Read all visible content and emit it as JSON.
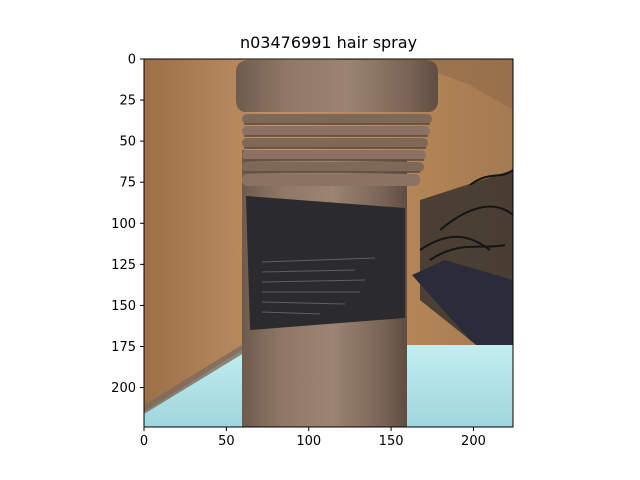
{
  "title": "n03476991 hair spray",
  "image": {
    "subject": "hair spray can",
    "colors": {
      "wall": "#b98a5b",
      "can": "#8d7666",
      "can_dark": "#6f5c4f",
      "label": "#2b2b2d",
      "floor": "#a8dbe0",
      "frame": "#000000"
    }
  },
  "axes": {
    "x_ticks": [
      "0",
      "50",
      "100",
      "150",
      "200"
    ],
    "y_ticks": [
      "0",
      "25",
      "50",
      "75",
      "100",
      "125",
      "150",
      "175",
      "200"
    ],
    "xlim": [
      0,
      224
    ],
    "ylim": [
      224,
      0
    ]
  }
}
